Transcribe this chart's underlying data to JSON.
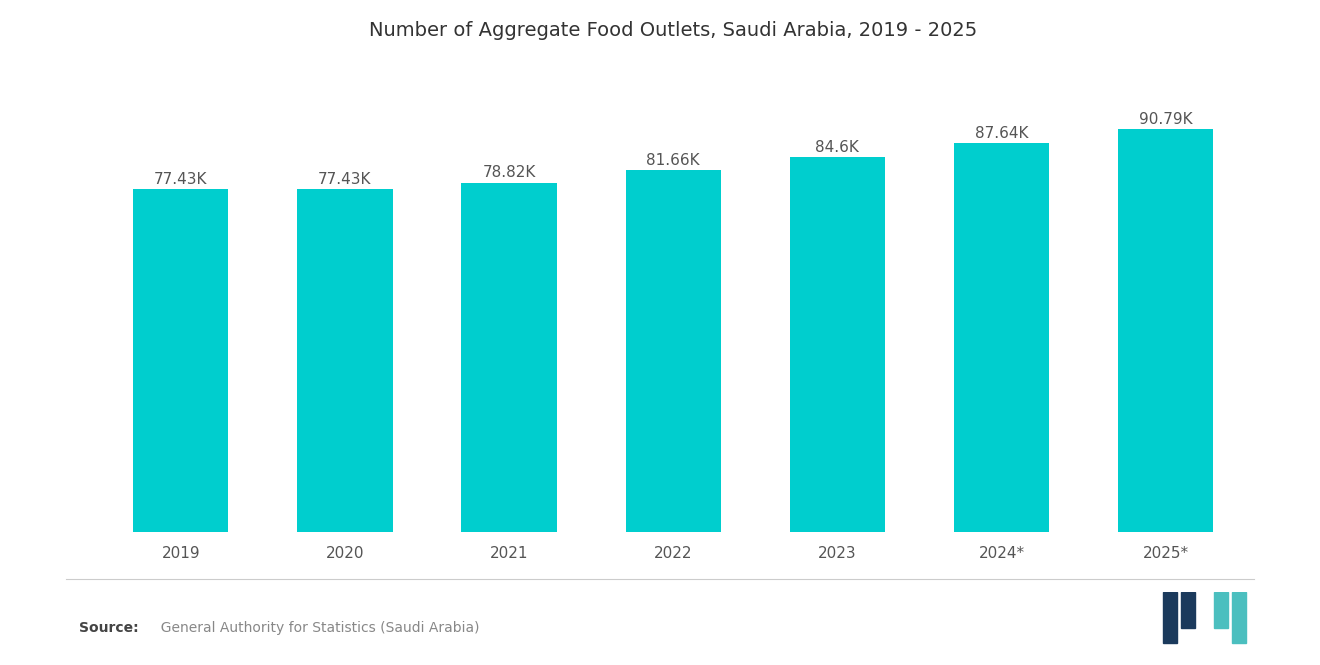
{
  "title": "Number of Aggregate Food Outlets, Saudi Arabia, 2019 - 2025",
  "categories": [
    "2019",
    "2020",
    "2021",
    "2022",
    "2023",
    "2024*",
    "2025*"
  ],
  "values": [
    77.43,
    77.43,
    78.82,
    81.66,
    84.6,
    87.64,
    90.79
  ],
  "labels": [
    "77.43K",
    "77.43K",
    "78.82K",
    "81.66K",
    "84.6K",
    "87.64K",
    "90.79K"
  ],
  "bar_color": "#00CECE",
  "background_color": "#ffffff",
  "title_fontsize": 14,
  "label_fontsize": 11,
  "tick_fontsize": 11,
  "source_text": "  General Authority for Statistics (Saudi Arabia)",
  "source_label": "Source:",
  "ylim_min": 0,
  "ylim_max": 105
}
